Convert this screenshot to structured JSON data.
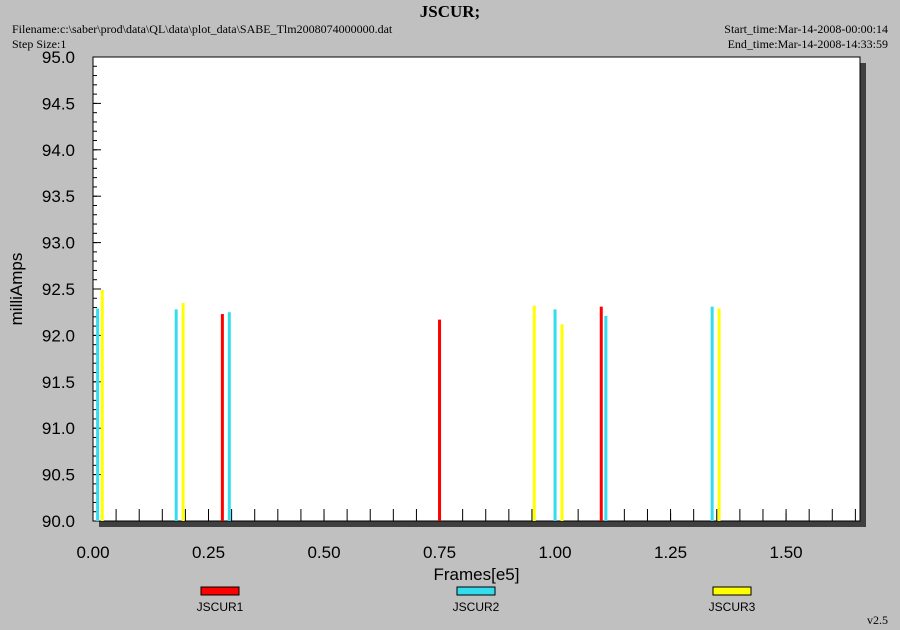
{
  "header": {
    "title": "JSCUR;",
    "filename": "Filename:c:\\saber\\prod\\data\\QL\\data\\plot_data\\SABE_Tlm2008074000000.dat",
    "step_size": "Step Size:1",
    "start_time": "Start_time:Mar-14-2008-00:00:14",
    "end_time": "End_time:Mar-14-2008-14:33:59"
  },
  "footer": {
    "version": "v2.5"
  },
  "chart_data": {
    "type": "bar",
    "title": "JSCUR;",
    "xlabel": "Frames[e5]",
    "ylabel": "milliAmps",
    "xlim": [
      0.0,
      1.66
    ],
    "ylim": [
      90.0,
      95.0
    ],
    "x_ticks": [
      "0.00",
      "0.25",
      "0.50",
      "0.75",
      "1.00",
      "1.25",
      "1.50"
    ],
    "x_tick_values": [
      0.0,
      0.25,
      0.5,
      0.75,
      1.0,
      1.25,
      1.5
    ],
    "y_ticks": [
      "90.0",
      "90.5",
      "91.0",
      "91.5",
      "92.0",
      "92.5",
      "93.0",
      "93.5",
      "94.0",
      "94.5",
      "95.0"
    ],
    "y_tick_values": [
      90.0,
      90.5,
      91.0,
      91.5,
      92.0,
      92.5,
      93.0,
      93.5,
      94.0,
      94.5,
      95.0
    ],
    "legend_position": "bottom",
    "series": [
      {
        "name": "JSCUR1",
        "color": "#ff0000",
        "points": [
          {
            "x": 0.28,
            "y": 92.23
          },
          {
            "x": 0.75,
            "y": 92.17
          },
          {
            "x": 1.1,
            "y": 92.31
          }
        ]
      },
      {
        "name": "JSCUR2",
        "color": "#33ddee",
        "points": [
          {
            "x": 0.01,
            "y": 92.29
          },
          {
            "x": 0.18,
            "y": 92.28
          },
          {
            "x": 0.295,
            "y": 92.25
          },
          {
            "x": 1.0,
            "y": 92.28
          },
          {
            "x": 1.11,
            "y": 92.21
          },
          {
            "x": 1.34,
            "y": 92.31
          }
        ]
      },
      {
        "name": "JSCUR3",
        "color": "#ffff00",
        "points": [
          {
            "x": 0.02,
            "y": 92.49
          },
          {
            "x": 0.195,
            "y": 92.35
          },
          {
            "x": 0.955,
            "y": 92.32
          },
          {
            "x": 1.015,
            "y": 92.12
          },
          {
            "x": 1.355,
            "y": 92.29
          }
        ]
      }
    ]
  }
}
